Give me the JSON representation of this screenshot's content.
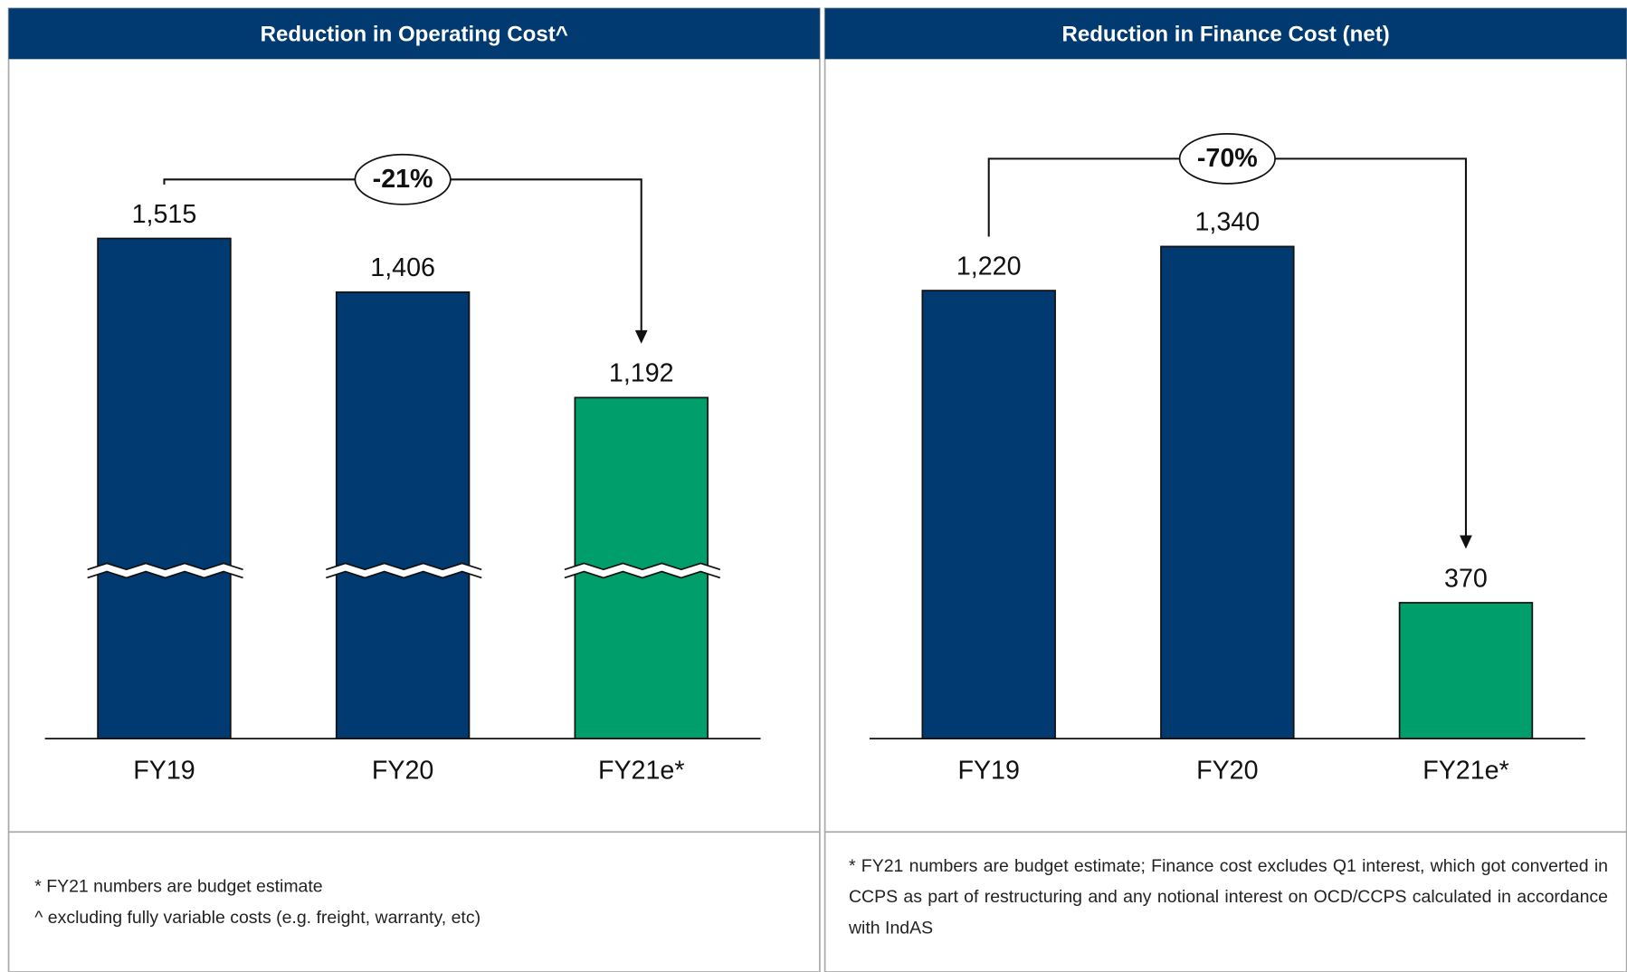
{
  "chart_data": [
    {
      "type": "bar",
      "title": "Reduction in Operating Cost^",
      "categories": [
        "FY19",
        "FY20",
        "FY21e*"
      ],
      "values": [
        1515,
        1406,
        1192
      ],
      "value_labels": [
        "1,515",
        "1,406",
        "1,192"
      ],
      "colors": [
        "#003a70",
        "#003a70",
        "#009e6b"
      ],
      "ylim": [
        500,
        1700
      ],
      "axis_break": true,
      "annotation": "-21%",
      "footnotes": [
        "* FY21 numbers are budget estimate",
        "^ excluding fully variable costs (e.g. freight, warranty, etc)"
      ]
    },
    {
      "type": "bar",
      "title": "Reduction in Finance Cost (net)",
      "categories": [
        "FY19",
        "FY20",
        "FY21e*"
      ],
      "values": [
        1220,
        1340,
        370
      ],
      "value_labels": [
        "1,220",
        "1,340",
        "370"
      ],
      "colors": [
        "#003a70",
        "#003a70",
        "#009e6b"
      ],
      "ylim": [
        0,
        1500
      ],
      "axis_break": false,
      "annotation": "-70%",
      "footnotes": [
        "* FY21 numbers are budget estimate; Finance cost excludes Q1 interest, which got converted in CCPS as part of restructuring and any notional interest on OCD/CCPS calculated in accordance with IndAS"
      ]
    }
  ]
}
